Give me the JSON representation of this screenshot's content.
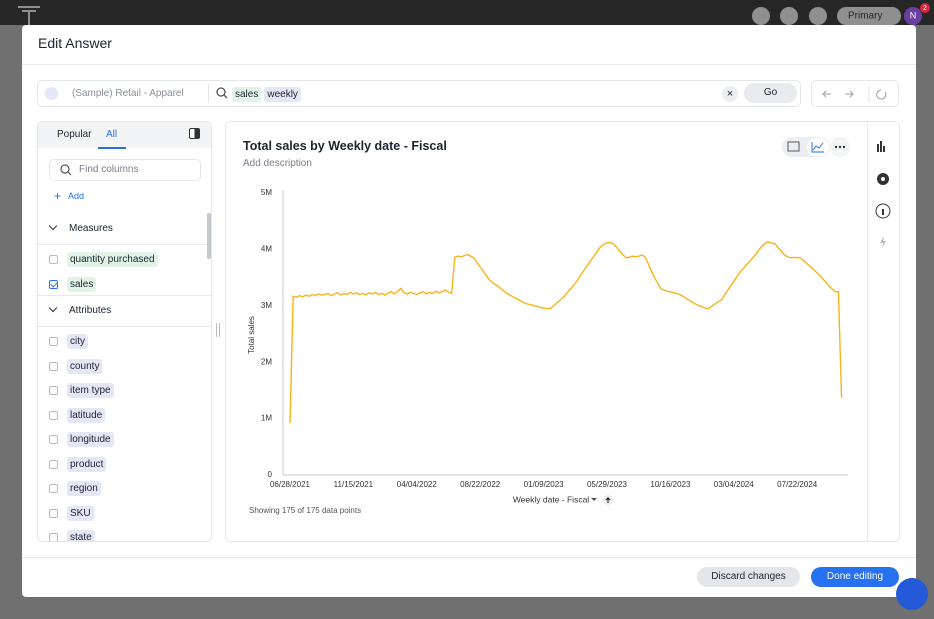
{
  "app": {
    "account": "Primary",
    "avatar": "N",
    "notifications": 2
  },
  "modal": {
    "title": "Edit Answer",
    "discard": "Discard changes",
    "done": "Done editing"
  },
  "search": {
    "source": "(Sample) Retail - Apparel",
    "tokens": [
      "sales",
      "weekly"
    ],
    "go": "Go"
  },
  "columns": {
    "tabs": [
      "Popular",
      "All"
    ],
    "active_tab": 1,
    "placeholder": "Find columns",
    "add": "Add",
    "groups": [
      {
        "title": "Measures",
        "kind": "measure",
        "items": [
          {
            "label": "quantity purchased",
            "checked": false
          },
          {
            "label": "sales",
            "checked": true
          }
        ]
      },
      {
        "title": "Attributes",
        "kind": "attribute",
        "items": [
          {
            "label": "city",
            "checked": false
          },
          {
            "label": "county",
            "checked": false
          },
          {
            "label": "item type",
            "checked": false
          },
          {
            "label": "latitude",
            "checked": false
          },
          {
            "label": "longitude",
            "checked": false
          },
          {
            "label": "product",
            "checked": false
          },
          {
            "label": "region",
            "checked": false
          },
          {
            "label": "SKU",
            "checked": false
          },
          {
            "label": "state",
            "checked": false
          }
        ]
      }
    ]
  },
  "chart_data": {
    "type": "line",
    "title": "Total sales by Weekly date - Fiscal",
    "subtitle": "Add description",
    "x_label": "Weekly date - Fiscal",
    "y_label": "Total sales",
    "footnote": "Showing 175 of 175 data points",
    "color": "#f5b41c",
    "grid": false,
    "ylim": [
      0,
      5000000
    ],
    "yticks": [
      0,
      {
        "value": 1000000,
        "label": "1M"
      },
      {
        "value": 2000000,
        "label": "2M"
      },
      {
        "value": 3000000,
        "label": "3M"
      },
      {
        "value": 4000000,
        "label": "4M"
      },
      {
        "value": 5000000,
        "label": "5M"
      }
    ],
    "categories": [
      "06/28/2021",
      null,
      null,
      null,
      null,
      null,
      null,
      null,
      null,
      null,
      null,
      null,
      null,
      null,
      null,
      null,
      null,
      null,
      null,
      null,
      "11/15/2021",
      null,
      null,
      null,
      null,
      null,
      null,
      null,
      null,
      null,
      null,
      null,
      null,
      null,
      null,
      null,
      null,
      null,
      null,
      null,
      "04/04/2022",
      null,
      null,
      null,
      null,
      null,
      null,
      null,
      null,
      null,
      null,
      null,
      null,
      null,
      null,
      null,
      null,
      null,
      null,
      null,
      "08/22/2022",
      null,
      null,
      null,
      null,
      null,
      null,
      null,
      null,
      null,
      null,
      null,
      null,
      null,
      null,
      null,
      null,
      null,
      null,
      null,
      "01/09/2023",
      null,
      null,
      null,
      null,
      null,
      null,
      null,
      null,
      null,
      null,
      null,
      null,
      null,
      null,
      null,
      null,
      null,
      null,
      null,
      "05/29/2023",
      null,
      null,
      null,
      null,
      null,
      null,
      null,
      null,
      null,
      null,
      null,
      null,
      null,
      null,
      null,
      null,
      null,
      null,
      null,
      "10/16/2023",
      null,
      null,
      null,
      null,
      null,
      null,
      null,
      null,
      null,
      null,
      null,
      null,
      null,
      null,
      null,
      null,
      null,
      null,
      null,
      "03/04/2024",
      null,
      null,
      null,
      null,
      null,
      null,
      null,
      null,
      null,
      null,
      null,
      null,
      null,
      null,
      null,
      null,
      null,
      null,
      null,
      "07/22/2024",
      null,
      null,
      null,
      null,
      null,
      null,
      null,
      null,
      null,
      null,
      null,
      null,
      null,
      null
    ],
    "values": [
      920000,
      3170000,
      3150000,
      3180000,
      3160000,
      3190000,
      3170000,
      3200000,
      3180000,
      3210000,
      3190000,
      3200000,
      3220000,
      3180000,
      3210000,
      3230000,
      3190000,
      3220000,
      3200000,
      3240000,
      3210000,
      3230000,
      3200000,
      3220000,
      3190000,
      3230000,
      3210000,
      3240000,
      3200000,
      3220000,
      3190000,
      3230000,
      3250000,
      3210000,
      3260000,
      3310000,
      3230000,
      3210000,
      3240000,
      3220000,
      3200000,
      3230000,
      3250000,
      3210000,
      3240000,
      3220000,
      3260000,
      3230000,
      3250000,
      3280000,
      3240000,
      3220000,
      3860000,
      3880000,
      3870000,
      3890000,
      3910000,
      3880000,
      3850000,
      3770000,
      3690000,
      3610000,
      3530000,
      3450000,
      3410000,
      3370000,
      3330000,
      3280000,
      3240000,
      3200000,
      3170000,
      3140000,
      3110000,
      3080000,
      3050000,
      3030000,
      3020000,
      3000000,
      2990000,
      2970000,
      2960000,
      2950000,
      2950000,
      2990000,
      3040000,
      3090000,
      3140000,
      3200000,
      3270000,
      3330000,
      3400000,
      3480000,
      3570000,
      3650000,
      3730000,
      3810000,
      3890000,
      3970000,
      4050000,
      4090000,
      4120000,
      4120000,
      4100000,
      4040000,
      3970000,
      3910000,
      3850000,
      3860000,
      3880000,
      3870000,
      3880000,
      3900000,
      3870000,
      3750000,
      3620000,
      3500000,
      3400000,
      3300000,
      3280000,
      3260000,
      3250000,
      3230000,
      3220000,
      3200000,
      3170000,
      3130000,
      3100000,
      3060000,
      3030000,
      3000000,
      2980000,
      2960000,
      2950000,
      2990000,
      3030000,
      3070000,
      3100000,
      3180000,
      3270000,
      3350000,
      3430000,
      3520000,
      3600000,
      3660000,
      3730000,
      3790000,
      3850000,
      3920000,
      4000000,
      4060000,
      4120000,
      4130000,
      4110000,
      4100000,
      4030000,
      3970000,
      3900000,
      3870000,
      3850000,
      3860000,
      3850000,
      3850000,
      3800000,
      3750000,
      3700000,
      3650000,
      3600000,
      3550000,
      3480000,
      3420000,
      3350000,
      3300000,
      3250000,
      3250000,
      1370000
    ]
  }
}
